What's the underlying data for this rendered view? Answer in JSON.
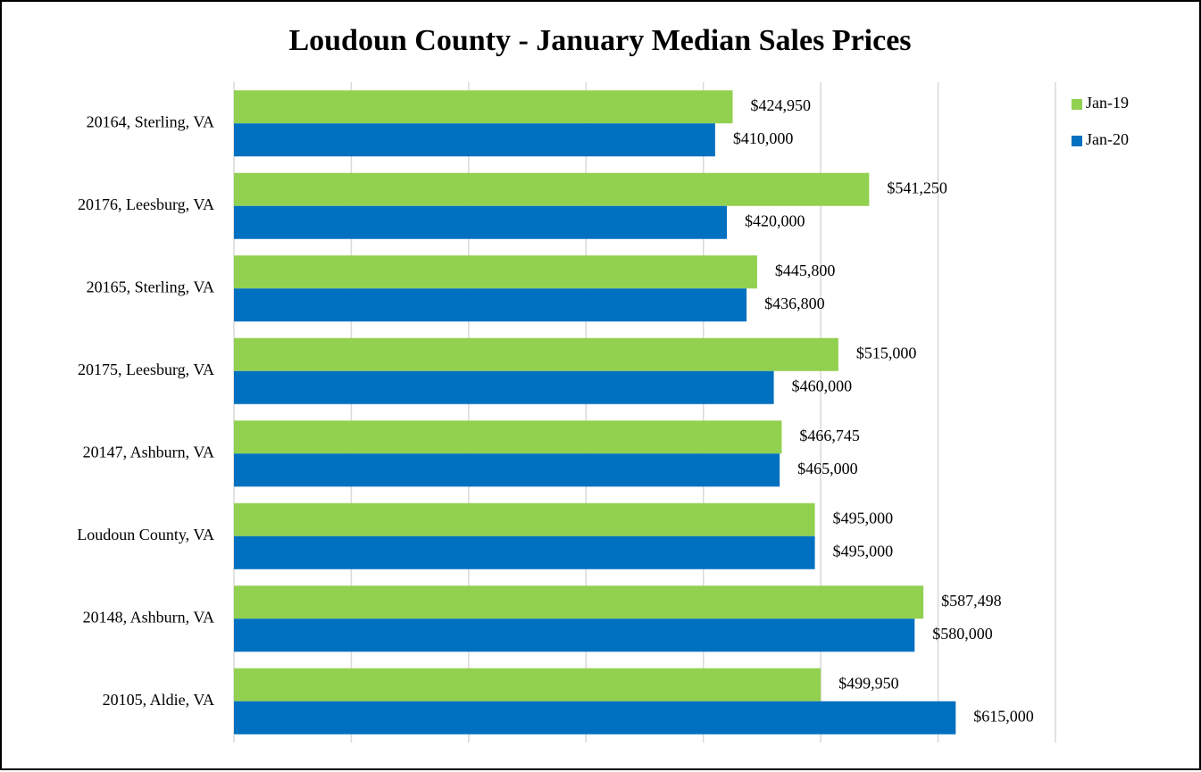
{
  "chart_data": {
    "type": "barh",
    "title": "Loudoun County - January Median Sales Prices",
    "categories": [
      "20164, Sterling, VA",
      "20176, Leesburg, VA",
      "20165, Sterling, VA",
      "20175, Leesburg, VA",
      "20147, Ashburn, VA",
      "Loudoun County, VA",
      "20148, Ashburn, VA",
      "20105, Aldie, VA"
    ],
    "series": [
      {
        "name": "Jan-19",
        "color": "#92d050",
        "values": [
          424950,
          541250,
          445800,
          515000,
          466745,
          495000,
          587498,
          499950
        ],
        "value_labels": [
          "$424,950",
          "$541,250",
          "$445,800",
          "$515,000",
          "$466,745",
          "$495,000",
          "$587,498",
          "$499,950"
        ]
      },
      {
        "name": "Jan-20",
        "color": "#0070c0",
        "values": [
          410000,
          420000,
          436800,
          460000,
          465000,
          495000,
          580000,
          615000
        ],
        "value_labels": [
          "$410,000",
          "$420,000",
          "$436,800",
          "$460,000",
          "$465,000",
          "$495,000",
          "$580,000",
          "$615,000"
        ]
      }
    ],
    "xlim": [
      0,
      700000
    ],
    "xticks": [
      0,
      100000,
      200000,
      300000,
      400000,
      500000,
      600000,
      700000
    ],
    "grid": true,
    "legend": "top-right"
  }
}
